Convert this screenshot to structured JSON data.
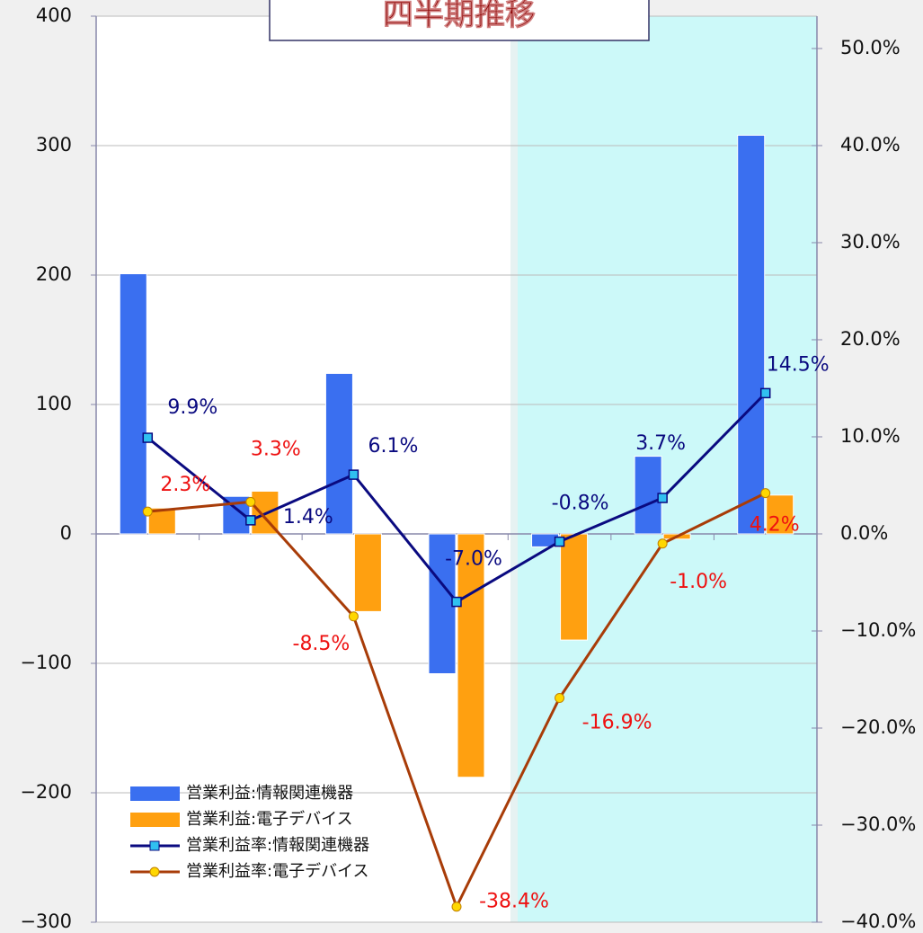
{
  "chart_data": {
    "type": "bar",
    "title": "四半期推移",
    "categories": [
      null,
      null,
      null,
      null,
      null,
      null,
      null
    ],
    "series": [
      {
        "name": "営業利益:情報関連機器",
        "type": "bar",
        "color": "#3a6ff0",
        "values": [
          201,
          29,
          124,
          -108,
          -10,
          60,
          308
        ]
      },
      {
        "name": "営業利益:電子デバイス",
        "type": "bar",
        "color": "#ffa010",
        "values": [
          20,
          33,
          -60,
          -188,
          -82,
          -4,
          30
        ]
      },
      {
        "name": "営業利益率:情報関連機器",
        "type": "line",
        "axis": "y2",
        "color": "#0a0a80",
        "marker_color": "#30c0f0",
        "values": [
          9.9,
          1.4,
          6.1,
          -7.0,
          -0.8,
          3.7,
          14.5
        ],
        "value_labels": [
          "9.9%",
          "1.4%",
          "6.1%",
          "-7.0%",
          "-0.8%",
          "3.7%",
          "14.5%"
        ],
        "label_color": "#0a0a80"
      },
      {
        "name": "営業利益率:電子デバイス",
        "type": "line",
        "axis": "y2",
        "color": "#a83c08",
        "marker_color": "#ffd700",
        "values": [
          2.3,
          3.3,
          -8.5,
          -38.4,
          -16.9,
          -1.0,
          4.2
        ],
        "value_labels": [
          "2.3%",
          "3.3%",
          "-8.5%",
          "-38.4%",
          "-16.9%",
          "-1.0%",
          "4.2%"
        ],
        "label_color": "#ee1111"
      }
    ],
    "ylim": [
      -300,
      400
    ],
    "yticks": [
      {
        "value": -300,
        "label": "−300"
      },
      {
        "value": -200,
        "label": "−200"
      },
      {
        "value": -100,
        "label": "−100"
      },
      0,
      100,
      200,
      300,
      400
    ],
    "y2lim": [
      -40,
      53.33
    ],
    "y2ticks": [
      {
        "value": -40,
        "label": "−40.0%"
      },
      {
        "value": -30,
        "label": "−30.0%"
      },
      {
        "value": -20,
        "label": "−20.0%"
      },
      {
        "value": -10,
        "label": "−10.0%"
      },
      {
        "value": 0,
        "label": "0.0%"
      },
      {
        "value": 10,
        "label": "10.0%"
      },
      {
        "value": 20,
        "label": "20.0%"
      },
      {
        "value": 30,
        "label": "30.0%"
      },
      {
        "value": 40,
        "label": "40.0%"
      },
      {
        "value": 50,
        "label": "50.0%"
      }
    ],
    "grid": true,
    "legend": "lower left"
  }
}
